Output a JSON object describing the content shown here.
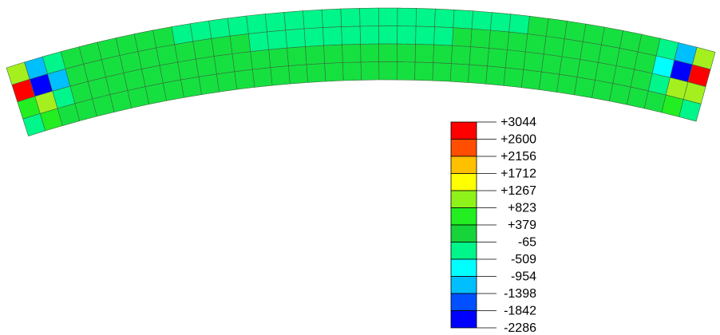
{
  "contour": {
    "colors": {
      "dark_blue": "#0000ff",
      "blue": "#0050ff",
      "sky_blue": "#00bfff",
      "cyan": "#00ffff",
      "aqua_green": "#00f58a",
      "green": "#16e040",
      "bright_green": "#22ee22",
      "yellow_green": "#a6ef1f",
      "yellow": "#ffff00",
      "orange_yellow": "#ffc000",
      "orange": "#ff6000",
      "red": "#ff0000"
    },
    "mesh": {
      "columns": 38,
      "rows": 4
    }
  },
  "legend": {
    "levels": [
      "+3044",
      "+2600",
      "+2156",
      "+1712",
      "+1267",
      "+823",
      "+379",
      "-65",
      "-509",
      "-954",
      "-1398",
      "-1842",
      "-2286"
    ],
    "colors": [
      "#ff0000",
      "#ff4e00",
      "#ffc000",
      "#ffff00",
      "#8ff21a",
      "#22ee22",
      "#16d43a",
      "#00f58a",
      "#00ffff",
      "#00bfff",
      "#0050ff",
      "#0000ff"
    ]
  }
}
